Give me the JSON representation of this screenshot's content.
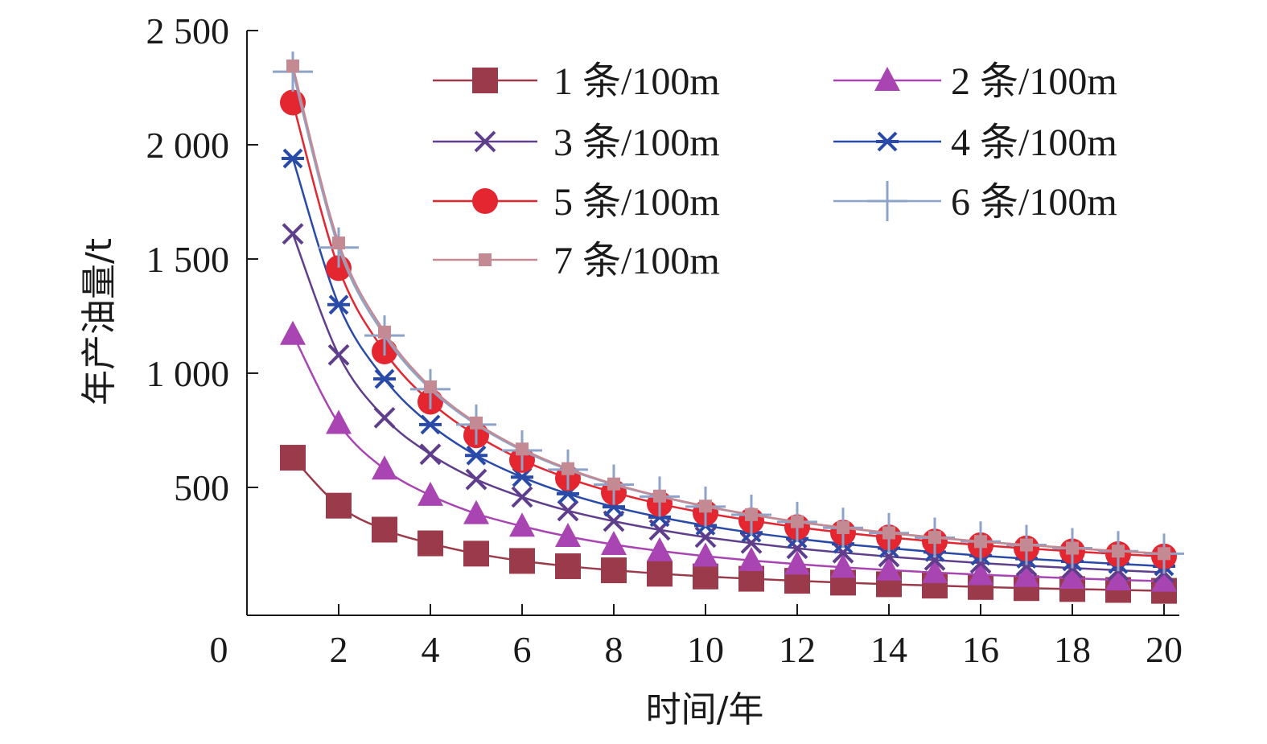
{
  "chart_data": {
    "type": "line",
    "title": "",
    "xlabel": "时间/年",
    "ylabel": "年产油量/t",
    "xlim": [
      0,
      20.4
    ],
    "ylim": [
      -60,
      2500
    ],
    "origin_label": "0",
    "xticks": [
      2,
      4,
      6,
      8,
      10,
      12,
      14,
      16,
      18,
      20
    ],
    "xtick_labels": [
      "2",
      "4",
      "6",
      "8",
      "10",
      "12",
      "14",
      "16",
      "18",
      "20"
    ],
    "yticks": [
      500,
      1000,
      1500,
      2000,
      2500
    ],
    "ytick_labels": [
      "500",
      "1 000",
      "1 500",
      "2 000",
      "2 500"
    ],
    "legend_position": "top-right",
    "x": [
      1,
      2,
      3,
      4,
      5,
      6,
      7,
      8,
      9,
      10,
      11,
      12,
      13,
      14,
      15,
      16,
      17,
      18,
      19,
      20
    ],
    "series": [
      {
        "name": "1 条/100m",
        "color": "#9a3a4a",
        "marker": "square",
        "values": [
          630,
          420,
          315,
          255,
          210,
          178,
          155,
          137,
          122,
          110,
          100,
          91,
          83,
          76,
          70,
          64,
          59,
          55,
          51,
          47
        ]
      },
      {
        "name": "2 条/100m",
        "color": "#a845b2",
        "marker": "triangle",
        "values": [
          1170,
          780,
          580,
          465,
          385,
          330,
          285,
          250,
          222,
          199,
          180,
          164,
          150,
          138,
          127,
          118,
          110,
          102,
          95,
          89
        ]
      },
      {
        "name": "3 条/100m",
        "color": "#5f3f8c",
        "marker": "x",
        "values": [
          1610,
          1080,
          805,
          645,
          535,
          458,
          398,
          352,
          314,
          282,
          256,
          233,
          214,
          197,
          182,
          169,
          157,
          147,
          137,
          128
        ]
      },
      {
        "name": "4 条/100m",
        "color": "#2a4aa8",
        "marker": "star",
        "values": [
          1940,
          1300,
          975,
          775,
          640,
          545,
          472,
          415,
          370,
          333,
          302,
          276,
          253,
          234,
          217,
          201,
          188,
          176,
          165,
          155
        ]
      },
      {
        "name": "5 条/100m",
        "color": "#e3262f",
        "marker": "circle",
        "values": [
          2185,
          1460,
          1095,
          875,
          728,
          620,
          540,
          478,
          428,
          388,
          355,
          326,
          302,
          281,
          263,
          247,
          233,
          220,
          208,
          198
        ]
      },
      {
        "name": "6 条/100m",
        "color": "#8da3c8",
        "marker": "plus",
        "values": [
          2320,
          1550,
          1165,
          930,
          775,
          662,
          578,
          512,
          460,
          416,
          380,
          349,
          323,
          300,
          280,
          263,
          248,
          234,
          221,
          210
        ]
      },
      {
        "name": "7 条/100m",
        "color": "#c48a94",
        "marker": "small-square",
        "values": [
          2345,
          1570,
          1180,
          940,
          782,
          668,
          582,
          515,
          462,
          418,
          381,
          350,
          324,
          301,
          281,
          263,
          248,
          234,
          221,
          210
        ]
      }
    ]
  }
}
